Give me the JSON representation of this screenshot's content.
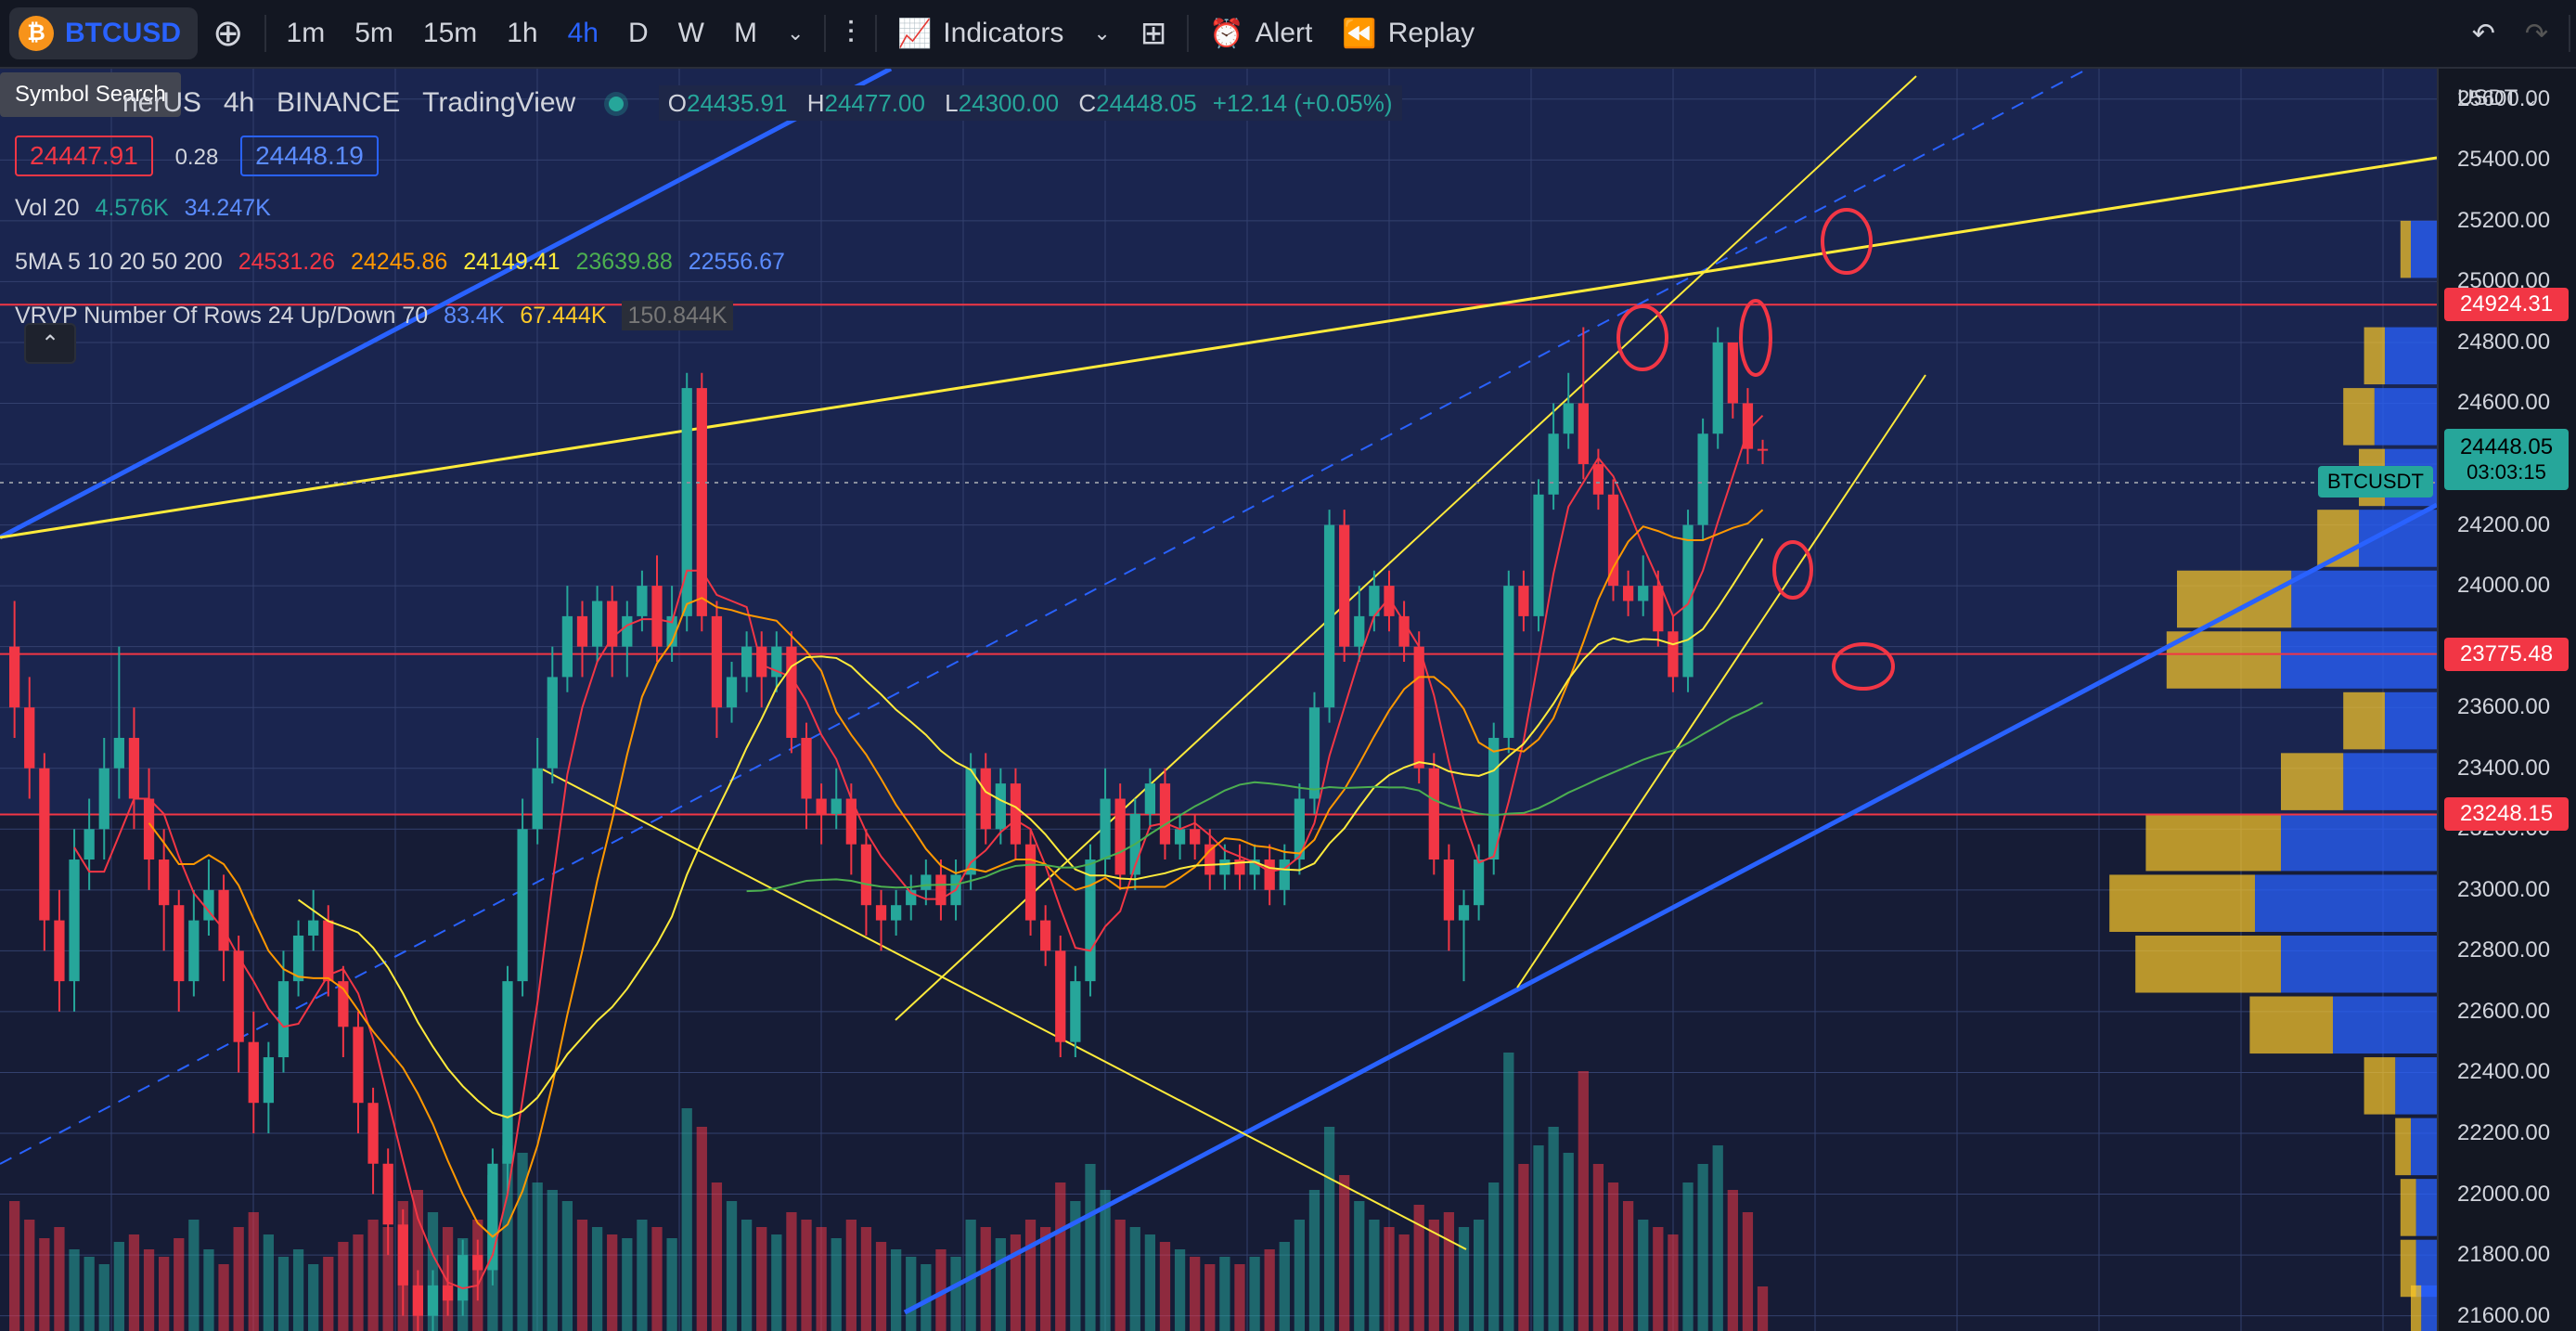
{
  "toolbar": {
    "symbol": "BTCUSD",
    "intervals": [
      "1m",
      "5m",
      "15m",
      "1h",
      "4h",
      "D",
      "W",
      "M"
    ],
    "active_interval": "4h",
    "indicators_label": "Indicators",
    "alert_label": "Alert",
    "replay_label": "Replay"
  },
  "tooltip": {
    "symbol_search": "Symbol Search"
  },
  "legend": {
    "title_partial": "nerUS",
    "interval": "4h",
    "exchange": "BINANCE",
    "source": "TradingView",
    "ohlc": {
      "o_label": "O",
      "o": "24435.91",
      "h_label": "H",
      "h": "24477.00",
      "l_label": "L",
      "l": "24300.00",
      "c_label": "C",
      "c": "24448.05",
      "change": "+12.14 (+0.05%)"
    },
    "bid": "24447.91",
    "spread": "0.28",
    "ask": "24448.19",
    "vol": {
      "label": "Vol 20",
      "v1": "4.576K",
      "v2": "34.247K"
    },
    "ma": {
      "label": "5MA 5 10 20 50 200",
      "values": [
        "24531.26",
        "24245.86",
        "24149.41",
        "23639.88",
        "22556.67"
      ],
      "colors": [
        "#f23645",
        "#ff9800",
        "#ffeb3b",
        "#4caf50",
        "#2962ff"
      ]
    },
    "vrvp": {
      "label": "VRVP Number Of Rows 24 Up/Down 70",
      "v1": "83.4K",
      "v2": "67.444K",
      "v3": "150.844K"
    }
  },
  "price_axis": {
    "currency": "USDT",
    "ticks": [
      "25600.00",
      "25400.00",
      "25200.00",
      "25000.00",
      "24800.00",
      "24600.00",
      "24400.00",
      "24200.00",
      "24000.00",
      "23800.00",
      "23600.00",
      "23400.00",
      "23200.00",
      "23000.00",
      "22800.00",
      "22600.00",
      "22400.00",
      "22200.00",
      "22000.00",
      "21800.00",
      "21600.00"
    ],
    "level_tags": [
      "24924.31",
      "23775.48",
      "23248.15"
    ],
    "current_price": "24448.05",
    "countdown": "03:03:15",
    "symbol_tag": "BTCUSDT"
  },
  "colors": {
    "bull": "#26a69a",
    "bear": "#f23645",
    "bg": "#1c2a5a",
    "grid": "#3a4575",
    "trend": "#ffeb3b",
    "channel": "#2962ff",
    "level": "#f23645"
  },
  "chart_data": {
    "type": "candlestick",
    "title": "",
    "ylim": [
      21550,
      25700
    ],
    "horizontal_levels": [
      24924.31,
      23775.48,
      23248.15
    ],
    "candles": [
      [
        23800,
        23600,
        23950,
        23500
      ],
      [
        23600,
        23400,
        23700,
        23300
      ],
      [
        23400,
        22900,
        23450,
        22800
      ],
      [
        22900,
        22700,
        23000,
        22600
      ],
      [
        22700,
        23100,
        23200,
        22600
      ],
      [
        23100,
        23200,
        23300,
        23000
      ],
      [
        23200,
        23400,
        23500,
        23100
      ],
      [
        23400,
        23500,
        23800,
        23300
      ],
      [
        23500,
        23300,
        23600,
        23200
      ],
      [
        23300,
        23100,
        23400,
        23000
      ],
      [
        23100,
        22950,
        23200,
        22800
      ],
      [
        22950,
        22700,
        23000,
        22600
      ],
      [
        22700,
        22900,
        23000,
        22650
      ],
      [
        22900,
        23000,
        23100,
        22850
      ],
      [
        23000,
        22800,
        23050,
        22700
      ],
      [
        22800,
        22500,
        22850,
        22400
      ],
      [
        22500,
        22300,
        22600,
        22200
      ],
      [
        22300,
        22450,
        22500,
        22200
      ],
      [
        22450,
        22700,
        22800,
        22400
      ],
      [
        22700,
        22850,
        22900,
        22650
      ],
      [
        22850,
        22900,
        23000,
        22800
      ],
      [
        22900,
        22700,
        22950,
        22650
      ],
      [
        22700,
        22550,
        22750,
        22450
      ],
      [
        22550,
        22300,
        22600,
        22200
      ],
      [
        22300,
        22100,
        22350,
        22000
      ],
      [
        22100,
        21900,
        22150,
        21800
      ],
      [
        21900,
        21700,
        21950,
        21600
      ],
      [
        21700,
        21600,
        21750,
        21550
      ],
      [
        21600,
        21700,
        21750,
        21550
      ],
      [
        21700,
        21650,
        21800,
        21600
      ],
      [
        21650,
        21800,
        21850,
        21600
      ],
      [
        21800,
        21750,
        21850,
        21650
      ],
      [
        21750,
        22100,
        22150,
        21700
      ],
      [
        22100,
        22700,
        22750,
        22000
      ],
      [
        22700,
        23200,
        23300,
        22650
      ],
      [
        23200,
        23400,
        23500,
        23150
      ],
      [
        23400,
        23700,
        23800,
        23350
      ],
      [
        23700,
        23900,
        24000,
        23650
      ],
      [
        23900,
        23800,
        23950,
        23700
      ],
      [
        23800,
        23950,
        24000,
        23750
      ],
      [
        23950,
        23800,
        24000,
        23700
      ],
      [
        23800,
        23900,
        23950,
        23700
      ],
      [
        23900,
        24000,
        24050,
        23850
      ],
      [
        24000,
        23800,
        24100,
        23750
      ],
      [
        23800,
        23900,
        24000,
        23750
      ],
      [
        23900,
        24650,
        24700,
        23850
      ],
      [
        24650,
        23900,
        24700,
        23850
      ],
      [
        23900,
        23600,
        23950,
        23500
      ],
      [
        23600,
        23700,
        23750,
        23550
      ],
      [
        23700,
        23800,
        23850,
        23650
      ],
      [
        23800,
        23700,
        23850,
        23600
      ],
      [
        23700,
        23800,
        23850,
        23650
      ],
      [
        23800,
        23500,
        23850,
        23450
      ],
      [
        23500,
        23300,
        23550,
        23200
      ],
      [
        23300,
        23250,
        23350,
        23150
      ],
      [
        23250,
        23300,
        23400,
        23200
      ],
      [
        23300,
        23150,
        23350,
        23050
      ],
      [
        23150,
        22950,
        23200,
        22850
      ],
      [
        22950,
        22900,
        23000,
        22800
      ],
      [
        22900,
        22950,
        23000,
        22850
      ],
      [
        22950,
        23000,
        23050,
        22900
      ],
      [
        23000,
        23050,
        23100,
        22950
      ],
      [
        23050,
        22950,
        23100,
        22900
      ],
      [
        22950,
        23050,
        23100,
        22900
      ],
      [
        23050,
        23400,
        23450,
        23000
      ],
      [
        23400,
        23200,
        23450,
        23150
      ],
      [
        23200,
        23350,
        23400,
        23150
      ],
      [
        23350,
        23150,
        23400,
        23100
      ],
      [
        23150,
        22900,
        23200,
        22850
      ],
      [
        22900,
        22800,
        22950,
        22750
      ],
      [
        22800,
        22500,
        22850,
        22450
      ],
      [
        22500,
        22700,
        22750,
        22450
      ],
      [
        22700,
        23100,
        23150,
        22650
      ],
      [
        23100,
        23300,
        23400,
        23050
      ],
      [
        23300,
        23050,
        23350,
        23000
      ],
      [
        23050,
        23250,
        23300,
        23000
      ],
      [
        23250,
        23350,
        23400,
        23200
      ],
      [
        23350,
        23150,
        23400,
        23100
      ],
      [
        23150,
        23200,
        23250,
        23100
      ],
      [
        23200,
        23150,
        23250,
        23100
      ],
      [
        23150,
        23050,
        23200,
        23000
      ],
      [
        23050,
        23100,
        23150,
        23000
      ],
      [
        23100,
        23050,
        23150,
        23000
      ],
      [
        23050,
        23100,
        23150,
        23000
      ],
      [
        23100,
        23000,
        23150,
        22950
      ],
      [
        23000,
        23100,
        23150,
        22950
      ],
      [
        23100,
        23300,
        23350,
        23050
      ],
      [
        23300,
        23600,
        23650,
        23250
      ],
      [
        23600,
        24200,
        24250,
        23550
      ],
      [
        24200,
        23800,
        24250,
        23750
      ],
      [
        23800,
        23900,
        24000,
        23750
      ],
      [
        23900,
        24000,
        24050,
        23850
      ],
      [
        24000,
        23900,
        24050,
        23850
      ],
      [
        23900,
        23800,
        23950,
        23750
      ],
      [
        23800,
        23400,
        23850,
        23350
      ],
      [
        23400,
        23100,
        23450,
        23050
      ],
      [
        23100,
        22900,
        23150,
        22800
      ],
      [
        22900,
        22950,
        23000,
        22700
      ],
      [
        22950,
        23100,
        23150,
        22900
      ],
      [
        23100,
        23500,
        23550,
        23050
      ],
      [
        23500,
        24000,
        24050,
        23450
      ],
      [
        24000,
        23900,
        24050,
        23850
      ],
      [
        23900,
        24300,
        24350,
        23850
      ],
      [
        24300,
        24500,
        24600,
        24250
      ],
      [
        24500,
        24600,
        24700,
        24450
      ],
      [
        24600,
        24400,
        24850,
        24350
      ],
      [
        24400,
        24300,
        24450,
        24250
      ],
      [
        24300,
        24000,
        24350,
        23950
      ],
      [
        24000,
        23950,
        24050,
        23900
      ],
      [
        23950,
        24000,
        24100,
        23900
      ],
      [
        24000,
        23850,
        24050,
        23800
      ],
      [
        23850,
        23700,
        23900,
        23650
      ],
      [
        23700,
        24200,
        24250,
        23650
      ],
      [
        24200,
        24500,
        24550,
        24150
      ],
      [
        24500,
        24800,
        24850,
        24450
      ],
      [
        24800,
        24600,
        24800,
        24550
      ],
      [
        24600,
        24450,
        24650,
        24400
      ],
      [
        24450,
        24448,
        24480,
        24400
      ]
    ],
    "volumes": [
      35,
      30,
      25,
      28,
      22,
      20,
      18,
      24,
      26,
      22,
      20,
      25,
      30,
      22,
      18,
      28,
      32,
      26,
      20,
      22,
      18,
      20,
      24,
      26,
      30,
      28,
      35,
      38,
      32,
      28,
      25,
      30,
      42,
      50,
      48,
      40,
      38,
      35,
      30,
      28,
      26,
      25,
      30,
      28,
      25,
      60,
      55,
      40,
      35,
      30,
      28,
      26,
      32,
      30,
      28,
      25,
      30,
      28,
      24,
      22,
      20,
      18,
      22,
      20,
      30,
      28,
      25,
      26,
      30,
      28,
      40,
      35,
      45,
      38,
      30,
      28,
      26,
      24,
      22,
      20,
      18,
      20,
      18,
      20,
      22,
      24,
      30,
      38,
      55,
      42,
      35,
      30,
      28,
      26,
      34,
      30,
      32,
      28,
      30,
      40,
      75,
      45,
      50,
      55,
      48,
      70,
      45,
      40,
      35,
      30,
      28,
      26,
      40,
      45,
      50,
      38,
      32,
      12
    ]
  }
}
